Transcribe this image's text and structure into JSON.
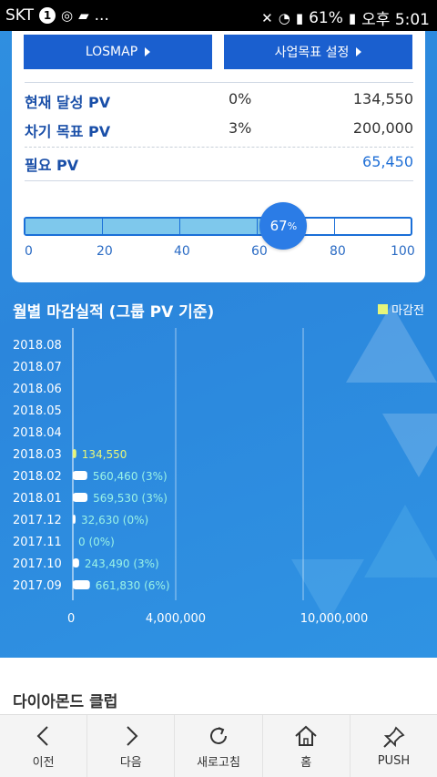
{
  "status_bar": {
    "carrier": "SKT",
    "badge": "1",
    "more": "...",
    "battery": "61%",
    "time": "오후 5:01"
  },
  "buttons": {
    "losmap": "LOSMAP",
    "goal_setting": "사업목표 설정"
  },
  "pv_rows": [
    {
      "label": "현재 달성 PV",
      "pct": "0%",
      "value": "134,550"
    },
    {
      "label": "차기 목표 PV",
      "pct": "3%",
      "value": "200,000"
    },
    {
      "label": "필요 PV",
      "pct": "",
      "value": "65,450"
    }
  ],
  "progress": {
    "percent": 67,
    "label": "67",
    "unit": "%",
    "ticks": [
      "0",
      "20",
      "40",
      "60",
      "80",
      "100"
    ]
  },
  "chart_section": {
    "title": "월별 마감실적 (그룹 PV 기준)",
    "legend_label": "마감전",
    "legend_color": "#e6f57a"
  },
  "chart_data": {
    "type": "bar",
    "orientation": "horizontal",
    "categories": [
      "2018.08",
      "2018.07",
      "2018.06",
      "2018.05",
      "2018.04",
      "2018.03",
      "2018.02",
      "2018.01",
      "2017.12",
      "2017.11",
      "2017.10",
      "2017.09"
    ],
    "values": [
      null,
      null,
      null,
      null,
      null,
      134550,
      560460,
      569530,
      32630,
      0,
      243490,
      661830
    ],
    "data_labels": [
      "",
      "",
      "",
      "",
      "",
      "134,550",
      "560,460 (3%)",
      "569,530 (3%)",
      "32,630 (0%)",
      "0 (0%)",
      "243,490 (3%)",
      "661,830 (6%)"
    ],
    "before_close": [
      false,
      false,
      false,
      false,
      false,
      true,
      false,
      false,
      false,
      false,
      false,
      false
    ],
    "xticks": [
      "0",
      "4,000,000",
      "10,000,000"
    ],
    "xtick_values": [
      0,
      4000000,
      10000000
    ],
    "xlim": [
      0,
      10000000
    ]
  },
  "diamond_club": "다이아몬드 클럽",
  "nav": [
    {
      "label": "이전",
      "icon": "chevron-left-icon"
    },
    {
      "label": "다음",
      "icon": "chevron-right-icon"
    },
    {
      "label": "새로고침",
      "icon": "refresh-icon"
    },
    {
      "label": "홈",
      "icon": "home-icon"
    },
    {
      "label": "PUSH",
      "icon": "pin-icon"
    }
  ]
}
